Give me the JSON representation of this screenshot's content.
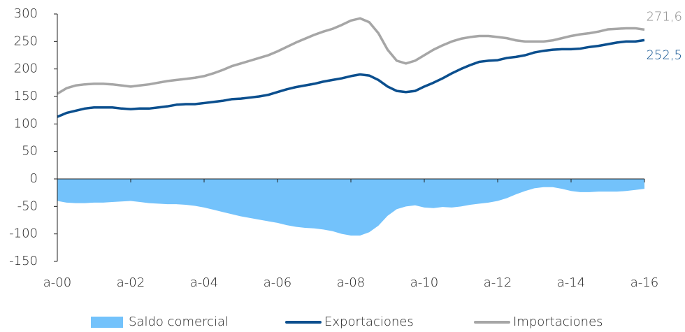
{
  "chart_data": {
    "type": "line",
    "categories": [
      "a-00",
      null,
      null,
      null,
      null,
      null,
      null,
      null,
      "a-02",
      null,
      null,
      null,
      null,
      null,
      null,
      null,
      "a-04",
      null,
      null,
      null,
      null,
      null,
      null,
      null,
      "a-06",
      null,
      null,
      null,
      null,
      null,
      null,
      null,
      "a-08",
      null,
      null,
      null,
      null,
      null,
      null,
      null,
      "a-10",
      null,
      null,
      null,
      null,
      null,
      null,
      null,
      "a-12",
      null,
      null,
      null,
      null,
      null,
      null,
      null,
      "a-14",
      null,
      null,
      null,
      null,
      null,
      null,
      null,
      "a-16"
    ],
    "series": [
      {
        "name": "Saldo comercial",
        "kind": "area",
        "color": "#73c2fb",
        "values": [
          -40,
          -43,
          -44,
          -44,
          -43,
          -43,
          -42,
          -41,
          -40,
          -42,
          -44,
          -45,
          -46,
          -46,
          -47,
          -49,
          -52,
          -56,
          -60,
          -64,
          -68,
          -71,
          -74,
          -77,
          -80,
          -84,
          -87,
          -89,
          -90,
          -92,
          -95,
          -100,
          -103,
          -103,
          -97,
          -85,
          -67,
          -55,
          -50,
          -48,
          -52,
          -53,
          -51,
          -52,
          -50,
          -47,
          -45,
          -43,
          -40,
          -35,
          -28,
          -22,
          -17,
          -15,
          -15,
          -18,
          -22,
          -24,
          -24,
          -23,
          -23,
          -23,
          -22,
          -20,
          -18
        ]
      },
      {
        "name": "Exportaciones",
        "kind": "line",
        "color": "#0b4f8e",
        "values": [
          113,
          120,
          124,
          128,
          130,
          130,
          130,
          128,
          127,
          128,
          128,
          130,
          132,
          135,
          136,
          136,
          138,
          140,
          142,
          145,
          146,
          148,
          150,
          153,
          158,
          163,
          167,
          170,
          173,
          177,
          180,
          183,
          187,
          190,
          188,
          180,
          168,
          160,
          158,
          160,
          168,
          175,
          183,
          192,
          200,
          207,
          213,
          215,
          216,
          220,
          222,
          225,
          230,
          233,
          235,
          236,
          236,
          237,
          240,
          242,
          245,
          248,
          250,
          250,
          252.5
        ],
        "value_labels": [
          null,
          null,
          null,
          null,
          null,
          null,
          null,
          null,
          null,
          null,
          null,
          null,
          null,
          null,
          null,
          null,
          null,
          null,
          null,
          null,
          null,
          null,
          null,
          null,
          null,
          null,
          null,
          null,
          null,
          null,
          null,
          null,
          null,
          null,
          null,
          null,
          null,
          null,
          null,
          null,
          null,
          null,
          null,
          null,
          null,
          null,
          null,
          null,
          null,
          null,
          null,
          null,
          null,
          null,
          null,
          null,
          null,
          null,
          null,
          null,
          null,
          null,
          null,
          null,
          "252,5"
        ]
      },
      {
        "name": "Importaciones",
        "kind": "line",
        "color": "#a6a6a6",
        "values": [
          155,
          165,
          170,
          172,
          173,
          173,
          172,
          170,
          168,
          170,
          172,
          175,
          178,
          180,
          182,
          184,
          187,
          192,
          198,
          205,
          210,
          215,
          220,
          225,
          232,
          240,
          248,
          255,
          262,
          268,
          273,
          280,
          288,
          292,
          285,
          265,
          235,
          215,
          210,
          215,
          225,
          235,
          243,
          250,
          255,
          258,
          260,
          260,
          258,
          256,
          252,
          250,
          250,
          250,
          252,
          256,
          260,
          263,
          265,
          268,
          272,
          273,
          274,
          274,
          271.6
        ],
        "value_labels": [
          null,
          null,
          null,
          null,
          null,
          null,
          null,
          null,
          null,
          null,
          null,
          null,
          null,
          null,
          null,
          null,
          null,
          null,
          null,
          null,
          null,
          null,
          null,
          null,
          null,
          null,
          null,
          null,
          null,
          null,
          null,
          null,
          null,
          null,
          null,
          null,
          null,
          null,
          null,
          null,
          null,
          null,
          null,
          null,
          null,
          null,
          null,
          null,
          null,
          null,
          null,
          null,
          null,
          null,
          null,
          null,
          null,
          null,
          null,
          null,
          null,
          null,
          null,
          null,
          "271,6"
        ]
      }
    ],
    "ylim": [
      -150,
      300
    ],
    "yticks": [
      -150,
      -100,
      -50,
      0,
      50,
      100,
      150,
      200,
      250,
      300
    ],
    "grid": false,
    "legend": "bottom"
  }
}
